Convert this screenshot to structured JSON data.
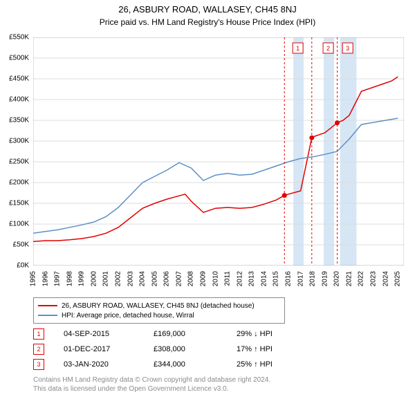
{
  "title": "26, ASBURY ROAD, WALLASEY, CH45 8NJ",
  "subtitle": "Price paid vs. HM Land Registry's House Price Index (HPI)",
  "chart": {
    "type": "line",
    "background_color": "#ffffff",
    "grid_color": "#dcdcdc",
    "plot_border_color": "#888888",
    "xlim": [
      1995,
      2025.5
    ],
    "ylim": [
      0,
      550
    ],
    "ytick_step": 50,
    "ytick_prefix": "£",
    "ytick_suffix": "K",
    "xticks": [
      1995,
      1996,
      1997,
      1998,
      1999,
      2000,
      2001,
      2002,
      2003,
      2004,
      2005,
      2006,
      2007,
      2008,
      2009,
      2010,
      2011,
      2012,
      2013,
      2014,
      2015,
      2016,
      2017,
      2018,
      2019,
      2020,
      2021,
      2022,
      2023,
      2024,
      2025
    ],
    "axis_fontsize": 10,
    "line_width": 1.5,
    "highlight_bands": [
      {
        "x_start": 2016.4,
        "x_end": 2017.25,
        "fill": "#d6e6f5"
      },
      {
        "x_start": 2018.9,
        "x_end": 2019.75,
        "fill": "#d6e6f5"
      },
      {
        "x_start": 2020.25,
        "x_end": 2021.6,
        "fill": "#d6e6f5"
      }
    ],
    "series": [
      {
        "id": "price_paid",
        "label": "26, ASBURY ROAD, WALLASEY, CH45 8NJ (detached house)",
        "color": "#e00000",
        "x": [
          1995,
          1996,
          1997,
          1998,
          1999,
          2000,
          2001,
          2002,
          2003,
          2004,
          2005,
          2006,
          2007,
          2007.5,
          2008,
          2009,
          2010,
          2011,
          2012,
          2013,
          2014,
          2015,
          2015.67,
          2016,
          2017,
          2017.92,
          2018,
          2019,
          2020.01,
          2020.5,
          2021,
          2022,
          2023,
          2024,
          2024.5,
          2025
        ],
        "y": [
          58,
          60,
          60,
          62,
          65,
          70,
          78,
          92,
          115,
          138,
          150,
          160,
          168,
          172,
          155,
          128,
          138,
          140,
          138,
          140,
          148,
          158,
          169,
          172,
          180,
          308,
          310,
          320,
          344,
          350,
          362,
          420,
          430,
          440,
          445,
          455
        ]
      },
      {
        "id": "hpi",
        "label": "HPI: Average price, detached house, Wirral",
        "color": "#5b8fc7",
        "x": [
          1995,
          1996,
          1997,
          1998,
          1999,
          2000,
          2001,
          2002,
          2003,
          2004,
          2005,
          2006,
          2007,
          2008,
          2009,
          2010,
          2011,
          2012,
          2013,
          2014,
          2015,
          2016,
          2017,
          2018,
          2019,
          2020,
          2021,
          2022,
          2023,
          2024,
          2025
        ],
        "y": [
          78,
          82,
          86,
          92,
          98,
          105,
          118,
          140,
          170,
          200,
          215,
          230,
          248,
          235,
          205,
          218,
          222,
          218,
          220,
          230,
          240,
          250,
          258,
          262,
          268,
          275,
          305,
          340,
          345,
          350,
          355
        ]
      }
    ],
    "sale_markers": [
      {
        "n": 1,
        "x": 2015.67,
        "y": 169,
        "label_x": 2015.5,
        "band_x": 2016.8
      },
      {
        "n": 2,
        "x": 2017.92,
        "y": 308,
        "label_x": 2017.8,
        "band_x": 2019.3
      },
      {
        "n": 3,
        "x": 2020.01,
        "y": 344,
        "label_x": 2020.0,
        "band_x": 2020.9
      }
    ],
    "vline_color": "#e00000",
    "vline_dash": "3,3",
    "marker_radius": 3.5,
    "badge_border": "#e00000",
    "badge_text_color": "#e00000",
    "badge_fontsize": 9
  },
  "legend": {
    "items": [
      {
        "color": "#e00000",
        "text": "26, ASBURY ROAD, WALLASEY, CH45 8NJ (detached house)"
      },
      {
        "color": "#5b8fc7",
        "text": "HPI: Average price, detached house, Wirral"
      }
    ],
    "border_color": "#888888",
    "fontsize": 10
  },
  "sales": [
    {
      "n": "1",
      "date": "04-SEP-2015",
      "price": "£169,000",
      "diff": "29% ↓ HPI"
    },
    {
      "n": "2",
      "date": "01-DEC-2017",
      "price": "£308,000",
      "diff": "17% ↑ HPI"
    },
    {
      "n": "3",
      "date": "03-JAN-2020",
      "price": "£344,000",
      "diff": "25% ↑ HPI"
    }
  ],
  "footer_line1": "Contains HM Land Registry data © Crown copyright and database right 2024.",
  "footer_line2": "This data is licensed under the Open Government Licence v3.0.",
  "colors": {
    "footer_text": "#8a8a8a",
    "text": "#000000"
  }
}
